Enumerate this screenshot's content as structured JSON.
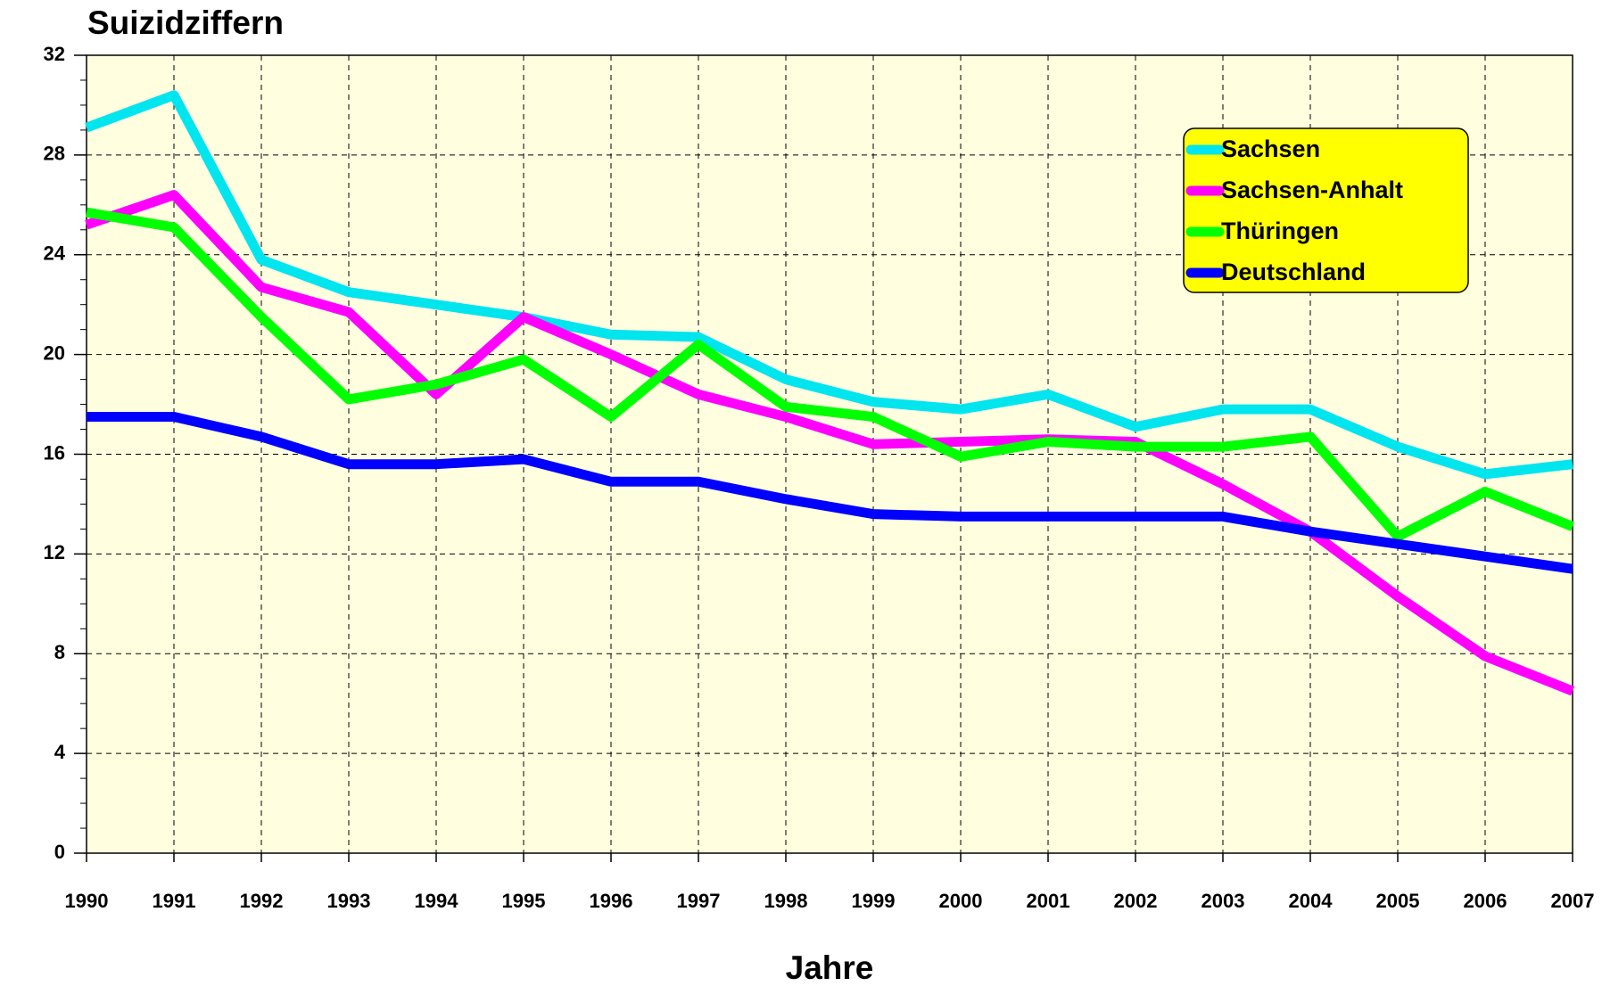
{
  "chart_data": {
    "type": "line",
    "title": "Suizidziffern",
    "x_label": "Jahre",
    "categories": [
      "1990",
      "1991",
      "1992",
      "1993",
      "1994",
      "1995",
      "1996",
      "1997",
      "1998",
      "1999",
      "2000",
      "2001",
      "2002",
      "2003",
      "2004",
      "2005",
      "2006",
      "2007"
    ],
    "series": [
      {
        "name": "Sachsen",
        "color": "#00e5ee",
        "values": [
          29.1,
          30.4,
          23.8,
          22.5,
          22.0,
          21.5,
          20.8,
          20.7,
          19.0,
          18.1,
          17.8,
          18.4,
          17.1,
          17.8,
          17.8,
          16.3,
          15.2,
          15.6
        ]
      },
      {
        "name": "Sachsen-Anhalt",
        "color": "#ff00ff",
        "values": [
          25.2,
          26.4,
          22.7,
          21.7,
          18.4,
          21.5,
          20.0,
          18.4,
          17.5,
          16.4,
          16.5,
          16.6,
          16.5,
          14.8,
          12.9,
          10.3,
          7.9,
          6.5
        ]
      },
      {
        "name": "Thüringen",
        "color": "#00ff00",
        "values": [
          25.7,
          25.1,
          21.5,
          18.2,
          18.8,
          19.8,
          17.5,
          20.4,
          17.9,
          17.5,
          15.9,
          16.5,
          16.3,
          16.3,
          16.7,
          12.7,
          14.5,
          13.1
        ]
      },
      {
        "name": "Deutschland",
        "color": "#0000ff",
        "values": [
          17.5,
          17.5,
          16.7,
          15.6,
          15.6,
          15.8,
          14.9,
          14.9,
          14.2,
          13.6,
          13.5,
          13.5,
          13.5,
          13.5,
          12.9,
          12.4,
          11.9,
          11.4
        ]
      }
    ],
    "ylim": [
      0,
      32
    ],
    "yticks": [
      0,
      4,
      8,
      12,
      16,
      20,
      24,
      28,
      32
    ],
    "grid": true,
    "plot_background": "#ffffe0",
    "legend_background": "#ffff00",
    "legend_position": "upper right"
  }
}
